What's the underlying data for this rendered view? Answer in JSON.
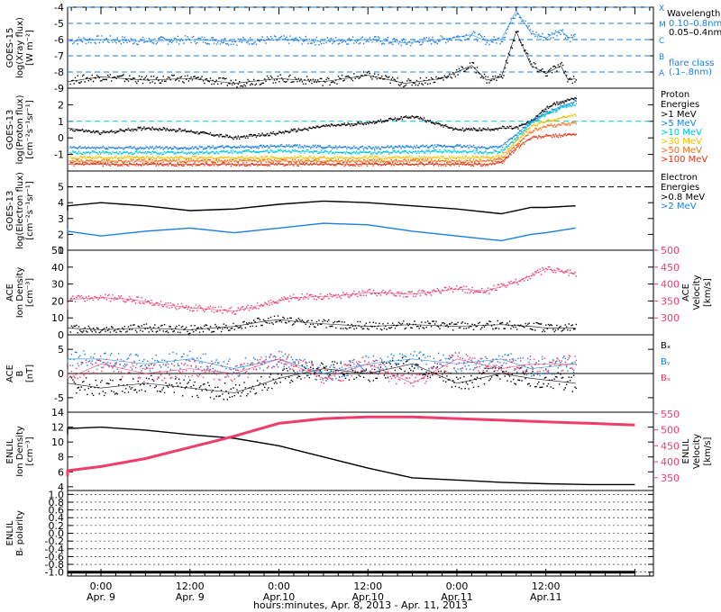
{
  "x_axis": {
    "ticks": [
      {
        "time": "0:00",
        "date": "Apr. 9"
      },
      {
        "time": "12:00",
        "date": "Apr. 9"
      },
      {
        "time": "0:00",
        "date": "Apr.10"
      },
      {
        "time": "12:00",
        "date": "Apr.10"
      },
      {
        "time": "0:00",
        "date": "Apr.11"
      },
      {
        "time": "12:00",
        "date": "Apr.11"
      }
    ],
    "caption": "hours:minutes, Apr.  8, 2013 - Apr. 11, 2013"
  },
  "colors": {
    "black": "#000000",
    "blue": "#1a7fe0",
    "cyan": "#00c8e0",
    "pink": "#f03c6a",
    "green": "#44d030",
    "yellow_green": "#b8e020",
    "yellow": "#f0c000",
    "orange": "#f07018",
    "red": "#e83010"
  },
  "chart_data": [
    {
      "type": "scatter",
      "panel": "goes15_xray",
      "ylabel": [
        "GOES-15",
        "log(Xray flux)",
        "[W m⁻²]"
      ],
      "ylim": [
        -9,
        -4
      ],
      "yticks": [
        -9,
        -8,
        -7,
        -6,
        -5,
        -4
      ],
      "log_scale": true,
      "x_range_hours": [
        0,
        84
      ],
      "flare_levels": [
        {
          "value": -4,
          "label": "X"
        },
        {
          "value": -5,
          "label": "M"
        },
        {
          "value": -6,
          "label": "C"
        },
        {
          "value": -7,
          "label": "B"
        },
        {
          "value": -8,
          "label": "A"
        }
      ],
      "legend": {
        "title": "Wavelength",
        "entries": [
          {
            "label": "0.10–0.8nm",
            "color": "#1a7fe0"
          },
          {
            "label": "0.05–0.4nm",
            "color": "#000000"
          }
        ],
        "note": [
          "flare class",
          "(.1–.8nm)"
        ]
      },
      "series": [
        {
          "name": "0.10–0.8nm",
          "x": [
            0,
            6,
            12,
            18,
            24,
            30,
            36,
            42,
            48,
            53,
            58,
            62,
            64,
            66,
            68,
            70,
            72,
            74,
            75,
            76
          ],
          "y": [
            -6.1,
            -6.1,
            -6.0,
            -6.1,
            -6.0,
            -6.1,
            -6.0,
            -6.1,
            -6.0,
            -6.2,
            -6.0,
            -5.7,
            -6.1,
            -6.0,
            -4.2,
            -5.6,
            -5.9,
            -5.4,
            -5.9,
            -5.8
          ]
        },
        {
          "name": "0.05–0.4nm",
          "x": [
            0,
            6,
            12,
            18,
            24,
            30,
            36,
            42,
            48,
            53,
            58,
            62,
            64,
            66,
            68,
            70,
            72,
            74,
            75,
            76
          ],
          "y": [
            -8.8,
            -8.6,
            -8.3,
            -8.5,
            -8.4,
            -8.7,
            -8.4,
            -8.6,
            -8.2,
            -8.7,
            -8.4,
            -7.6,
            -8.5,
            -8.3,
            -5.5,
            -7.6,
            -8.1,
            -7.6,
            -8.5,
            -8.4
          ]
        }
      ]
    },
    {
      "type": "scatter",
      "panel": "goes13_proton",
      "ylabel": [
        "GOES-13",
        "log(Proton flux)",
        "[cm⁻²s⁻¹sr⁻¹]"
      ],
      "ylim": [
        -2,
        3
      ],
      "yticks": [
        -1,
        0,
        1,
        2
      ],
      "threshold": 1,
      "legend": {
        "title": [
          "Proton",
          "Energies"
        ],
        "entries": [
          {
            "label": ">1 MeV",
            "color": "#000000"
          },
          {
            "label": ">5 MeV",
            "color": "#1a7fe0"
          },
          {
            "label": ">10 MeV",
            "color": "#00c8e0"
          },
          {
            "label": ">30 MeV",
            "color": "#f0c000"
          },
          {
            "label": ">50 MeV",
            "color": "#f07018"
          },
          {
            "label": ">100 MeV",
            "color": "#e83010"
          }
        ]
      },
      "series": [
        {
          "name": ">1 MeV",
          "x": [
            0,
            6,
            12,
            18,
            24,
            30,
            36,
            42,
            48,
            54,
            60,
            64,
            66,
            68,
            70,
            72,
            74,
            76
          ],
          "y": [
            0.8,
            0.6,
            0.3,
            0.6,
            0.4,
            0.0,
            0.3,
            0.7,
            0.9,
            1.3,
            0.5,
            0.5,
            0.6,
            0.6,
            1.0,
            1.8,
            2.2,
            2.4
          ]
        },
        {
          "name": ">5 MeV",
          "x": [
            0,
            12,
            24,
            36,
            48,
            60,
            64,
            66,
            68,
            70,
            72,
            74,
            76
          ],
          "y": [
            -0.6,
            -0.6,
            -0.6,
            -0.5,
            -0.6,
            -0.5,
            -0.6,
            -0.5,
            0.2,
            1.0,
            1.5,
            1.9,
            2.2
          ]
        },
        {
          "name": ">10 MeV",
          "x": [
            0,
            12,
            24,
            36,
            48,
            60,
            64,
            66,
            68,
            70,
            72,
            74,
            76
          ],
          "y": [
            -0.9,
            -0.9,
            -0.9,
            -0.8,
            -0.9,
            -0.8,
            -0.9,
            -0.8,
            0.0,
            0.9,
            1.4,
            1.8,
            2.0
          ]
        },
        {
          "name": ">30 MeV",
          "x": [
            0,
            12,
            24,
            36,
            48,
            60,
            64,
            66,
            68,
            70,
            72,
            74,
            76
          ],
          "y": [
            -1.2,
            -1.2,
            -1.2,
            -1.2,
            -1.2,
            -1.2,
            -1.2,
            -1.1,
            -0.2,
            0.7,
            1.0,
            1.2,
            1.4
          ]
        },
        {
          "name": ">50 MeV",
          "x": [
            0,
            12,
            24,
            36,
            48,
            60,
            64,
            66,
            68,
            70,
            72,
            74,
            76
          ],
          "y": [
            -1.4,
            -1.4,
            -1.4,
            -1.4,
            -1.4,
            -1.4,
            -1.4,
            -1.3,
            -0.4,
            0.4,
            0.7,
            0.8,
            0.9
          ]
        },
        {
          "name": ">100 MeV",
          "x": [
            0,
            12,
            24,
            36,
            48,
            60,
            64,
            66,
            68,
            70,
            72,
            74,
            76
          ],
          "y": [
            -1.6,
            -1.6,
            -1.6,
            -1.6,
            -1.6,
            -1.6,
            -1.6,
            -1.5,
            -0.6,
            0.0,
            0.1,
            0.15,
            0.2
          ]
        }
      ]
    },
    {
      "type": "line",
      "panel": "goes13_electron",
      "ylabel": [
        "GOES-13",
        "log(Electron flux)",
        "[cm⁻²s⁻¹sr⁻¹]"
      ],
      "ylim": [
        1,
        6
      ],
      "yticks": [
        1,
        2,
        3,
        4,
        5
      ],
      "threshold": 5,
      "legend": {
        "title": [
          "Electron",
          "Energies"
        ],
        "entries": [
          {
            "label": ">0.8 MeV",
            "color": "#000000"
          },
          {
            "label": ">2 MeV",
            "color": "#1a7fe0"
          }
        ]
      },
      "series": [
        {
          "name": ">0.8 MeV",
          "x": [
            0,
            6,
            12,
            18,
            24,
            30,
            36,
            42,
            48,
            54,
            60,
            66,
            70,
            72,
            76
          ],
          "y": [
            3.5,
            3.8,
            4.0,
            3.8,
            3.5,
            3.6,
            3.9,
            4.1,
            4.0,
            3.8,
            3.6,
            3.3,
            3.7,
            3.7,
            3.8
          ]
        },
        {
          "name": ">2 MeV",
          "x": [
            0,
            6,
            12,
            18,
            24,
            30,
            36,
            42,
            48,
            54,
            60,
            66,
            70,
            72,
            76
          ],
          "y": [
            2.4,
            2.2,
            1.9,
            2.2,
            2.4,
            2.1,
            2.4,
            2.7,
            2.6,
            2.2,
            1.9,
            1.6,
            2.0,
            2.1,
            2.4
          ]
        }
      ]
    },
    {
      "type": "scatter",
      "panel": "ace_density_velocity",
      "ylabel": [
        "ACE",
        "Ion Density",
        "[cm⁻³]"
      ],
      "ylim": [
        0,
        50
      ],
      "yticks": [
        0,
        10,
        20,
        30,
        40,
        50
      ],
      "y2label": [
        "ACE",
        "Velocity",
        "[km/s]"
      ],
      "y2lim": [
        250,
        500
      ],
      "y2ticks": [
        300,
        350,
        400,
        450,
        500
      ],
      "series": [
        {
          "name": "Density",
          "axis": "left",
          "x": [
            0,
            6,
            12,
            18,
            24,
            30,
            34,
            36,
            40,
            44,
            48,
            54,
            60,
            66,
            70,
            72,
            76
          ],
          "y": [
            2,
            4,
            3,
            4,
            3,
            5,
            8,
            9,
            7,
            6,
            5,
            6,
            5,
            6,
            5,
            4,
            4
          ]
        },
        {
          "name": "Velocity",
          "axis": "right",
          "x": [
            0,
            4,
            8,
            12,
            16,
            20,
            24,
            30,
            34,
            38,
            44,
            48,
            54,
            60,
            64,
            68,
            72,
            76
          ],
          "y": [
            325,
            345,
            355,
            360,
            355,
            340,
            330,
            320,
            340,
            360,
            365,
            375,
            370,
            385,
            380,
            405,
            445,
            430
          ]
        }
      ]
    },
    {
      "type": "scatter",
      "panel": "ace_b",
      "ylabel": [
        "ACE",
        "B",
        "[nT]"
      ],
      "ylim": [
        -8,
        8
      ],
      "yticks": [
        -5,
        0,
        5
      ],
      "legend": {
        "entries": [
          {
            "label": "Bₓ",
            "color": "#000000"
          },
          {
            "label": "Bᵧ",
            "color": "#1a7fe0"
          },
          {
            "label": "Bₔ",
            "color": "#f03c6a"
          }
        ]
      },
      "series": [
        {
          "name": "Bx",
          "x": [
            0,
            6,
            12,
            18,
            24,
            30,
            36,
            42,
            48,
            54,
            60,
            66,
            70,
            76
          ],
          "y": [
            -1,
            -2,
            -3,
            -2,
            -3,
            -4,
            -1,
            1,
            0,
            2,
            -2,
            0,
            -1,
            -2
          ]
        },
        {
          "name": "By",
          "x": [
            0,
            6,
            12,
            18,
            24,
            30,
            36,
            42,
            48,
            54,
            60,
            66,
            70,
            76
          ],
          "y": [
            2,
            3,
            3,
            2,
            3,
            1,
            3,
            0,
            2,
            3,
            2,
            3,
            1,
            2
          ]
        },
        {
          "name": "Bz",
          "x": [
            0,
            6,
            12,
            18,
            24,
            30,
            36,
            42,
            48,
            54,
            60,
            66,
            70,
            76
          ],
          "y": [
            1,
            -1,
            2,
            0,
            1,
            0,
            3,
            -1,
            2,
            -2,
            3,
            1,
            2,
            2
          ]
        }
      ]
    },
    {
      "type": "line",
      "panel": "enlil_density_velocity",
      "ylabel": [
        "ENLIL",
        "Ion Density",
        "[cm⁻³]"
      ],
      "ylim": [
        3.5,
        14
      ],
      "yticks": [
        4,
        6,
        8,
        10,
        12,
        14
      ],
      "y2label": [
        "ENLIL",
        "Velocity",
        "[km/s]"
      ],
      "y2lim": [
        310,
        555
      ],
      "y2ticks": [
        350,
        400,
        450,
        500,
        550
      ],
      "series": [
        {
          "name": "Density",
          "axis": "left",
          "x": [
            0,
            6,
            12,
            18,
            24,
            30,
            36,
            42,
            48,
            54,
            60,
            66,
            72,
            78,
            84
          ],
          "y": [
            11.0,
            11.8,
            12.0,
            11.6,
            11.0,
            10.5,
            9.5,
            8.0,
            6.5,
            5.2,
            4.9,
            4.6,
            4.4,
            4.3,
            4.3
          ]
        },
        {
          "name": "Velocity",
          "axis": "right",
          "x": [
            0,
            6,
            12,
            18,
            24,
            30,
            36,
            42,
            48,
            54,
            60,
            66,
            72,
            78,
            84
          ],
          "y": [
            355,
            372,
            385,
            410,
            445,
            480,
            520,
            535,
            540,
            540,
            535,
            530,
            525,
            520,
            515
          ]
        }
      ]
    },
    {
      "type": "line",
      "panel": "enlil_polarity",
      "ylabel": [
        "ENLIL",
        "Bᵣ polarity"
      ],
      "ylim": [
        -1.1,
        1.1
      ],
      "yticks": [
        -1.0,
        -0.8,
        -0.6,
        -0.4,
        -0.2,
        0.0,
        0.2,
        0.4,
        0.6,
        0.8,
        1.0
      ],
      "yticklabels": [
        "-1.0",
        "-0.8",
        "-0.6",
        "-0.4",
        "-0.2",
        "0.0",
        "0.2",
        "0.4",
        "0.6",
        "0.8",
        "1.0"
      ],
      "series": [
        {
          "name": "Polarity",
          "x": [
            0,
            84
          ],
          "y": [
            -1,
            -1
          ]
        }
      ]
    }
  ]
}
